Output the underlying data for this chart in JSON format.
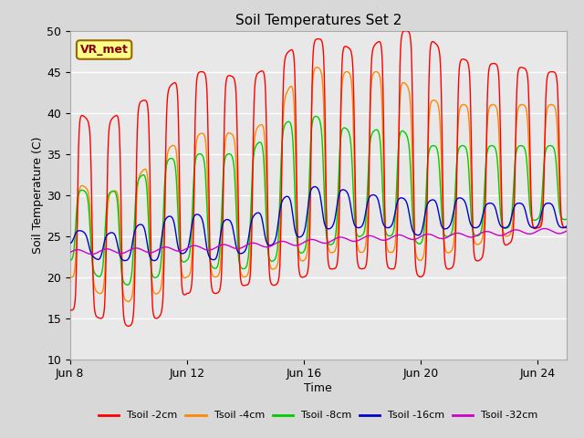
{
  "title": "Soil Temperatures Set 2",
  "xlabel": "Time",
  "ylabel": "Soil Temperature (C)",
  "xlim": [
    0,
    17
  ],
  "ylim": [
    10,
    50
  ],
  "yticks": [
    10,
    15,
    20,
    25,
    30,
    35,
    40,
    45,
    50
  ],
  "xtick_labels": [
    "Jun 8",
    "Jun 12",
    "Jun 16",
    "Jun 20",
    "Jun 24"
  ],
  "xtick_positions": [
    0,
    4,
    8,
    12,
    16
  ],
  "background_color": "#d8d8d8",
  "plot_bg_color": "#e8e8e8",
  "grid_color": "#ffffff",
  "annotation_text": "VR_met",
  "annotation_box_color": "#ffff88",
  "annotation_text_color": "#880000",
  "legend_entries": [
    "Tsoil -2cm",
    "Tsoil -4cm",
    "Tsoil -8cm",
    "Tsoil -16cm",
    "Tsoil -32cm"
  ],
  "line_colors": [
    "#ff0000",
    "#ff8800",
    "#00cc00",
    "#0000cc",
    "#cc00cc"
  ],
  "days": 17,
  "base_min_2cm": [
    16,
    15,
    14,
    15,
    18,
    18,
    19,
    19,
    20,
    21,
    21,
    21,
    20,
    21,
    22,
    24,
    26
  ],
  "base_max_2cm": [
    41,
    38,
    41,
    42,
    45,
    45,
    44,
    46,
    49,
    49,
    47,
    50,
    50,
    47,
    46,
    46,
    45
  ],
  "base_min_4cm": [
    20,
    18,
    17,
    18,
    20,
    20,
    20,
    21,
    22,
    23,
    23,
    23,
    22,
    23,
    24,
    25,
    26
  ],
  "base_max_4cm": [
    32,
    30,
    31,
    35,
    37,
    38,
    37,
    40,
    46,
    45,
    45,
    45,
    42,
    41,
    41,
    41,
    41
  ],
  "base_min_8cm": [
    22,
    20,
    19,
    20,
    22,
    21,
    21,
    22,
    23,
    24,
    25,
    25,
    24,
    25,
    25,
    26,
    27
  ],
  "base_max_8cm": [
    31,
    30,
    31,
    34,
    35,
    35,
    35,
    38,
    40,
    39,
    37,
    39,
    36,
    36,
    36,
    36,
    36
  ],
  "base_min_16cm": [
    24,
    22,
    22,
    22,
    23,
    22,
    23,
    24,
    25,
    26,
    26,
    26,
    25,
    26,
    26,
    26,
    26
  ],
  "base_max_16cm": [
    26,
    25,
    26,
    27,
    28,
    27,
    27,
    29,
    31,
    31,
    30,
    30,
    29,
    30,
    29,
    29,
    29
  ],
  "base_32cm": [
    23.0,
    23.1,
    23.2,
    23.3,
    23.5,
    23.6,
    23.8,
    24.0,
    24.2,
    24.5,
    24.7,
    24.8,
    24.9,
    25.0,
    25.2,
    25.4,
    25.6
  ],
  "phase_shifts": [
    0.0,
    0.02,
    0.06,
    0.12,
    0.0
  ],
  "sharpness": 3.0
}
